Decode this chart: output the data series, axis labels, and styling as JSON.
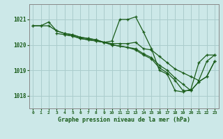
{
  "title": "Graphe pression niveau de la mer (hPa)",
  "background_color": "#cce8e8",
  "grid_color": "#aacccc",
  "line_color": "#1a5c1a",
  "spine_color": "#888888",
  "xlim": [
    -0.5,
    23.5
  ],
  "ylim": [
    1017.5,
    1021.6
  ],
  "yticks": [
    1018,
    1019,
    1020,
    1021
  ],
  "xticks": [
    0,
    1,
    2,
    3,
    4,
    5,
    6,
    7,
    8,
    9,
    10,
    11,
    12,
    13,
    14,
    15,
    16,
    17,
    18,
    19,
    20,
    21,
    22,
    23
  ],
  "lines": [
    {
      "x": [
        0,
        1,
        2,
        3,
        4,
        5,
        6,
        7,
        8,
        9,
        10,
        11,
        12,
        13,
        14,
        15,
        16,
        17,
        18,
        19,
        20,
        21,
        22,
        23
      ],
      "y": [
        1020.75,
        1020.75,
        1020.9,
        1020.55,
        1020.45,
        1020.4,
        1020.3,
        1020.25,
        1020.2,
        1020.1,
        1020.15,
        1021.0,
        1021.0,
        1021.1,
        1020.5,
        1019.85,
        1019.0,
        1018.85,
        1018.2,
        1018.15,
        1018.25,
        1019.3,
        1019.6,
        1019.6
      ]
    },
    {
      "x": [
        0,
        1,
        2,
        3,
        4,
        5,
        6,
        7,
        8,
        9,
        10,
        11,
        12,
        13,
        14,
        15,
        16,
        17,
        18,
        19,
        20,
        21,
        22,
        23
      ],
      "y": [
        1020.75,
        1020.75,
        1020.75,
        1020.55,
        1020.45,
        1020.4,
        1020.3,
        1020.25,
        1020.2,
        1020.1,
        1020.05,
        1020.05,
        1020.05,
        1020.1,
        1019.85,
        1019.8,
        1019.55,
        1019.3,
        1019.05,
        1018.9,
        1018.75,
        1018.6,
        1019.35,
        1019.6
      ]
    },
    {
      "x": [
        3,
        4,
        5,
        6,
        7,
        8,
        9,
        10,
        11,
        12,
        13,
        14,
        15,
        16,
        17,
        18,
        19,
        20,
        21,
        22,
        23
      ],
      "y": [
        1020.45,
        1020.4,
        1020.35,
        1020.25,
        1020.2,
        1020.15,
        1020.1,
        1020.0,
        1019.95,
        1019.9,
        1019.85,
        1019.65,
        1019.5,
        1019.2,
        1019.0,
        1018.7,
        1018.45,
        1018.2,
        1018.55,
        1018.75,
        1019.35
      ]
    },
    {
      "x": [
        4,
        5,
        6,
        7,
        8,
        9,
        10,
        11,
        12,
        13,
        14,
        15,
        16,
        17,
        18,
        19,
        20,
        21,
        22,
        23
      ],
      "y": [
        1020.4,
        1020.35,
        1020.25,
        1020.2,
        1020.15,
        1020.1,
        1020.0,
        1019.95,
        1019.9,
        1019.8,
        1019.6,
        1019.45,
        1019.1,
        1018.9,
        1018.6,
        1018.2,
        1018.2,
        1018.55,
        1018.75,
        1019.35
      ]
    }
  ]
}
